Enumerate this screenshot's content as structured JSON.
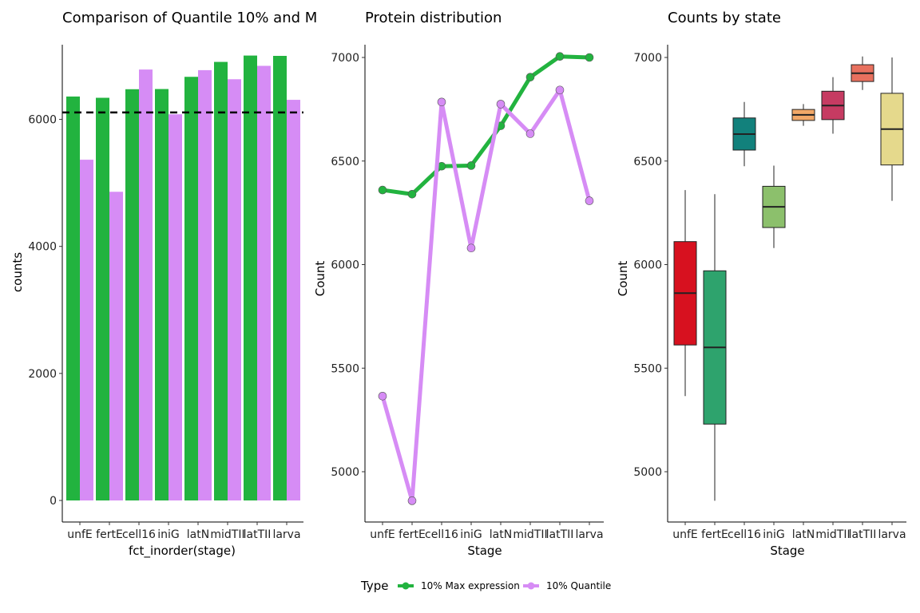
{
  "chart_data": [
    {
      "type": "bar",
      "title": "Comparison of Quantile 10% and M",
      "xlabel": "fct_inorder(stage)",
      "ylabel": "counts",
      "ylim": [
        0,
        7000
      ],
      "yticks": [
        0,
        2000,
        4000,
        6000
      ],
      "categories": [
        "unfE",
        "fertE",
        "cell16",
        "iniG",
        "latN",
        "midTII",
        "latTII",
        "larva"
      ],
      "series": [
        {
          "name": "10% Max expression",
          "color": "#22b33f",
          "values": [
            6360,
            6340,
            6475,
            6478,
            6670,
            6905,
            7005,
            7000
          ]
        },
        {
          "name": "10% Quantile",
          "color": "#d68cf5",
          "values": [
            5365,
            4860,
            6785,
            6080,
            6775,
            6632,
            6843,
            6308
          ]
        }
      ],
      "hline": {
        "value": 6110,
        "style": "dashed"
      },
      "grid": false
    },
    {
      "type": "line",
      "title": "Protein distribution",
      "xlabel": "Stage",
      "ylabel": "Count",
      "ylim": [
        4850,
        7100
      ],
      "yticks": [
        5000,
        5500,
        6000,
        6500,
        7000
      ],
      "categories": [
        "unfE",
        "fertE",
        "cell16",
        "iniG",
        "latN",
        "midTII",
        "latTII",
        "larva"
      ],
      "series": [
        {
          "name": "10% Max expression",
          "color": "#22b33f",
          "values": [
            6360,
            6340,
            6475,
            6478,
            6670,
            6905,
            7005,
            7000
          ]
        },
        {
          "name": "10% Quantile",
          "color": "#d68cf5",
          "values": [
            5365,
            4860,
            6785,
            6080,
            6775,
            6632,
            6843,
            6308
          ]
        }
      ],
      "legend": {
        "title": "Type",
        "position": "bottom"
      },
      "grid": false
    },
    {
      "type": "box",
      "title": "Counts by state",
      "xlabel": "Stage",
      "ylabel": "Count",
      "ylim": [
        4850,
        7100
      ],
      "yticks": [
        5000,
        5500,
        6000,
        6500,
        7000
      ],
      "categories": [
        "unfE",
        "fertE",
        "cell16",
        "iniG",
        "latN",
        "midTII",
        "latTII",
        "larva"
      ],
      "boxes": [
        {
          "min": 5365,
          "q1": 5612,
          "median": 5862,
          "q3": 6111,
          "max": 6360,
          "color": "#d7111f"
        },
        {
          "min": 4860,
          "q1": 5230,
          "median": 5600,
          "q3": 5970,
          "max": 6340,
          "color": "#2ea36d"
        },
        {
          "min": 6475,
          "q1": 6553,
          "median": 6630,
          "q3": 6708,
          "max": 6785,
          "color": "#12817c"
        },
        {
          "min": 6080,
          "q1": 6179,
          "median": 6279,
          "q3": 6378,
          "max": 6478,
          "color": "#8cc06c"
        },
        {
          "min": 6670,
          "q1": 6696,
          "median": 6723,
          "q3": 6749,
          "max": 6775,
          "color": "#f2a868"
        },
        {
          "min": 6632,
          "q1": 6700,
          "median": 6768,
          "q3": 6837,
          "max": 6905,
          "color": "#c63b62"
        },
        {
          "min": 6843,
          "q1": 6884,
          "median": 6924,
          "q3": 6965,
          "max": 7005,
          "color": "#e8705e"
        },
        {
          "min": 6308,
          "q1": 6481,
          "median": 6654,
          "q3": 6827,
          "max": 7000,
          "color": "#e5d98c"
        }
      ],
      "grid": false
    }
  ]
}
